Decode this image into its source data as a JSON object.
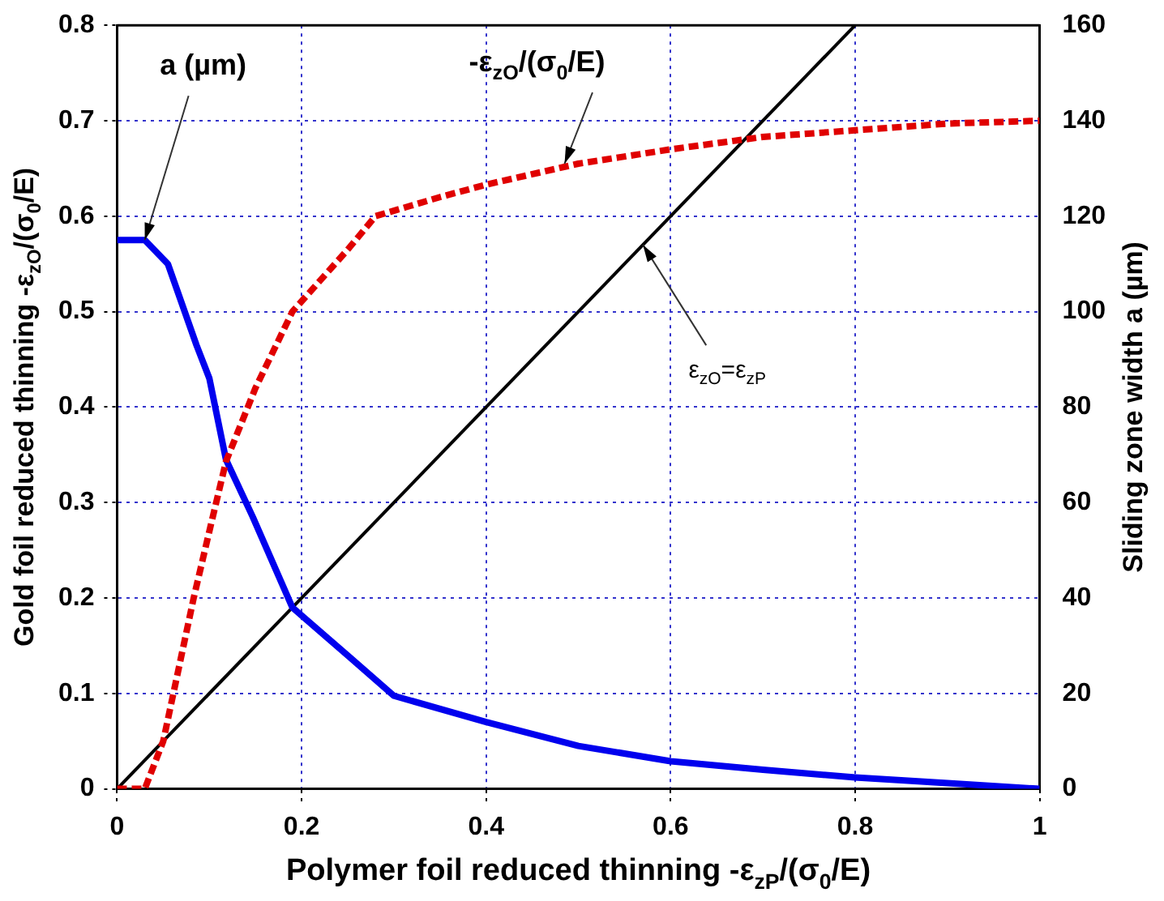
{
  "chart_data": {
    "type": "line",
    "xlabel": "Polymer foil reduced thinning -ε$_{zP}$/(σ$_{0}$/E)",
    "ylabel": "Gold foil reduced thinning -ε$_{zO}$/(σ$_{0}$/E)",
    "y2label": "Sliding zone width a (µm)",
    "xlim": [
      0,
      1
    ],
    "xticks": [
      0,
      0.2,
      0.4,
      0.6,
      0.8,
      1
    ],
    "ylim": [
      0,
      0.8
    ],
    "yticks": [
      0,
      0.1,
      0.2,
      0.3,
      0.4,
      0.5,
      0.6,
      0.7,
      0.8
    ],
    "y2lim": [
      0,
      160
    ],
    "y2ticks": [
      0,
      20,
      40,
      60,
      80,
      100,
      120,
      140,
      160
    ],
    "grid": true,
    "legend": false,
    "marker": "none",
    "series": [
      {
        "color": "#e00000",
        "line_style": "dashed",
        "x": [
          0,
          0.03,
          0.05,
          0.083,
          0.1,
          0.118,
          0.15,
          0.19,
          0.25,
          0.28,
          0.35,
          0.4,
          0.5,
          0.6,
          0.7,
          0.8,
          0.9,
          1
        ],
        "values": [
          0,
          0,
          0.05,
          0.2,
          0.27,
          0.343,
          0.42,
          0.5,
          0.565,
          0.6,
          0.62,
          0.633,
          0.655,
          0.67,
          0.683,
          0.69,
          0.697,
          0.7
        ]
      },
      {
        "color": "#0000ee",
        "line_style": "solid",
        "axis": "y2",
        "x": [
          0,
          0.03,
          0.055,
          0.086,
          0.1,
          0.118,
          0.147,
          0.19,
          0.252,
          0.3,
          0.4,
          0.5,
          0.6,
          0.7,
          0.8,
          0.9,
          1
        ],
        "values": [
          115,
          115,
          110,
          93,
          86,
          69,
          57,
          38,
          27.6,
          19.5,
          14,
          9,
          5.8,
          4,
          2.4,
          1.2,
          0
        ]
      },
      {
        "color": "#000000",
        "line_style": "solid",
        "x": [
          0,
          0.8
        ],
        "values": [
          0,
          0.8
        ]
      }
    ],
    "annotations": [
      {
        "text": "a (µm)",
        "x": 0.03,
        "y": 0.575
      },
      {
        "text": "-ε$_{zO}$/(σ$_{0}$/E)",
        "x": 0.485,
        "y": 0.655
      },
      {
        "text": "ε$_{zO}$=ε$_{zP}$",
        "x": 0.57,
        "y": 0.57
      }
    ]
  }
}
